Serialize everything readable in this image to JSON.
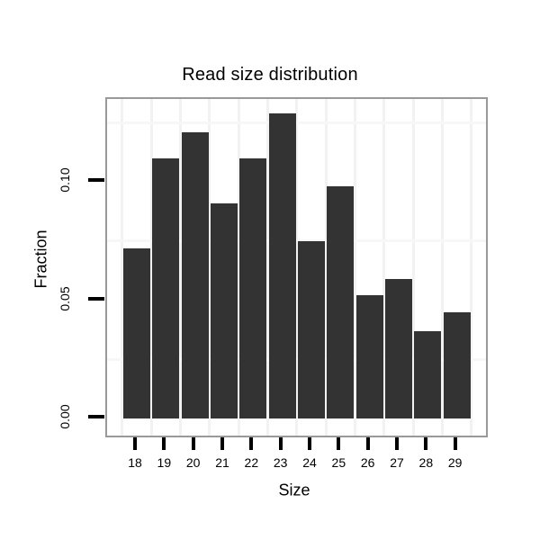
{
  "chart_data": {
    "type": "bar",
    "title": "Read size distribution",
    "xlabel": "Size",
    "ylabel": "Fraction",
    "categories": [
      "18",
      "19",
      "20",
      "21",
      "22",
      "23",
      "24",
      "25",
      "26",
      "27",
      "28",
      "29"
    ],
    "values": [
      0.072,
      0.11,
      0.121,
      0.091,
      0.11,
      0.129,
      0.075,
      0.098,
      0.052,
      0.059,
      0.037,
      0.045
    ],
    "y_ticks": [
      0.0,
      0.05,
      0.1
    ],
    "y_tick_labels": [
      "0.00",
      "0.05",
      "0.10"
    ],
    "minor_gridlines_y": [
      0.025,
      0.075,
      0.125
    ],
    "ylim": [
      -0.007,
      0.135
    ],
    "grid": "minor",
    "legend_position": "none",
    "colors": {
      "bar_fill": "#333333",
      "panel_border": "#999999",
      "grid_vertical": "#f2f2f2",
      "grid_horizontal": "#f7f7f7",
      "tick": "#000000",
      "text": "#000000"
    }
  }
}
